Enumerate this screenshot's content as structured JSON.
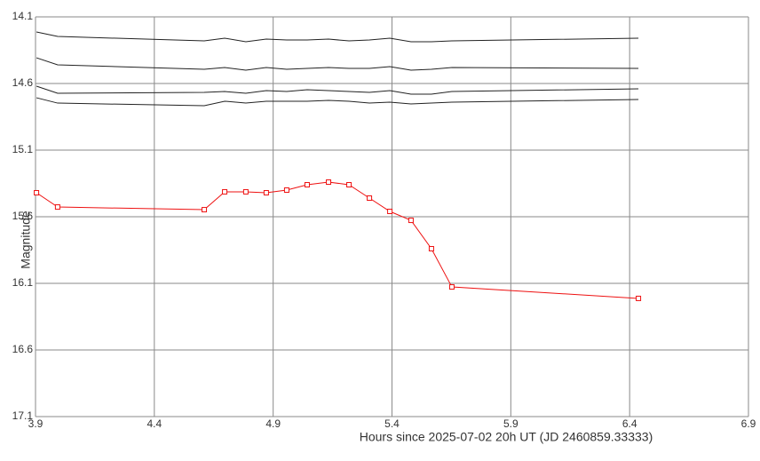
{
  "chart_data": {
    "type": "line",
    "x_label": "Hours since 2025-07-02 20h UT (JD 2460859.33333)",
    "y_label": "Magnitude",
    "x": [
      3.904,
      3.993,
      4.61,
      4.696,
      4.785,
      4.871,
      4.957,
      5.043,
      5.133,
      5.219,
      5.305,
      5.391,
      5.48,
      5.566,
      5.652,
      6.437
    ],
    "series": [
      {
        "color": "#222222",
        "markers": false,
        "values": [
          14.213,
          14.247,
          14.28,
          14.26,
          14.287,
          14.267,
          14.273,
          14.273,
          14.267,
          14.28,
          14.273,
          14.26,
          14.287,
          14.287,
          14.28,
          14.26
        ]
      },
      {
        "color": "#222222",
        "markers": false,
        "values": [
          14.407,
          14.46,
          14.493,
          14.48,
          14.5,
          14.48,
          14.493,
          14.487,
          14.48,
          14.487,
          14.487,
          14.473,
          14.5,
          14.493,
          14.48,
          14.487
        ]
      },
      {
        "color": "#222222",
        "markers": false,
        "values": [
          14.62,
          14.673,
          14.667,
          14.66,
          14.673,
          14.653,
          14.66,
          14.647,
          14.653,
          14.66,
          14.667,
          14.653,
          14.68,
          14.68,
          14.66,
          14.64
        ]
      },
      {
        "color": "#222222",
        "markers": false,
        "values": [
          14.707,
          14.747,
          14.767,
          14.733,
          14.747,
          14.733,
          14.733,
          14.733,
          14.727,
          14.733,
          14.747,
          14.74,
          14.753,
          14.747,
          14.74,
          14.72
        ]
      },
      {
        "color": "#ee1111",
        "markers": true,
        "values": [
          15.42,
          15.527,
          15.547,
          15.413,
          15.413,
          15.42,
          15.4,
          15.36,
          15.34,
          15.36,
          15.46,
          15.56,
          15.627,
          15.84,
          16.127,
          16.213
        ]
      }
    ],
    "xlim": [
      3.9,
      6.9
    ],
    "xticks": [
      3.9,
      4.4,
      4.9,
      5.4,
      5.9,
      6.4,
      6.9
    ],
    "ylim": [
      17.1,
      14.1
    ],
    "yticks": [
      14.1,
      14.6,
      15.1,
      15.6,
      16.1,
      16.6,
      17.1
    ],
    "grid": true
  }
}
